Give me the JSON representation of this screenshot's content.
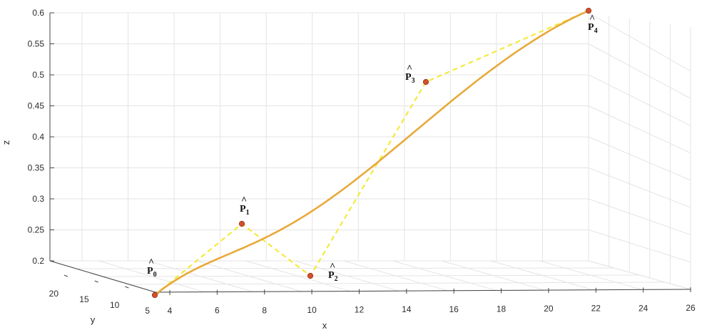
{
  "chart_data": {
    "type": "line3d",
    "axes": {
      "x": {
        "label": "x",
        "ticks": [
          "4",
          "6",
          "8",
          "10",
          "12",
          "14",
          "16",
          "18",
          "20",
          "22",
          "24",
          "26"
        ]
      },
      "y": {
        "label": "y",
        "ticks": [
          "5",
          "10",
          "15",
          "20"
        ]
      },
      "z": {
        "label": "z",
        "ticks": [
          "0.2",
          "0.25",
          "0.3",
          "0.35",
          "0.4",
          "0.45",
          "0.5",
          "0.55",
          "0.6"
        ],
        "range": [
          0.2,
          0.6
        ]
      }
    },
    "grid": true,
    "control_points": [
      {
        "label": "P",
        "sub": "0",
        "z": 0.2
      },
      {
        "label": "P",
        "sub": "1",
        "z": 0.26
      },
      {
        "label": "P",
        "sub": "2",
        "z": 0.2
      },
      {
        "label": "P",
        "sub": "3",
        "z": 0.49
      },
      {
        "label": "P",
        "sub": "4",
        "z": 0.6
      }
    ],
    "series": [
      {
        "kind": "curve",
        "color": "#e8a93a",
        "style": "solid"
      },
      {
        "kind": "control-polygon",
        "color": "#f3ea3c",
        "style": "dashed"
      }
    ],
    "point_color": "#d2502a"
  }
}
